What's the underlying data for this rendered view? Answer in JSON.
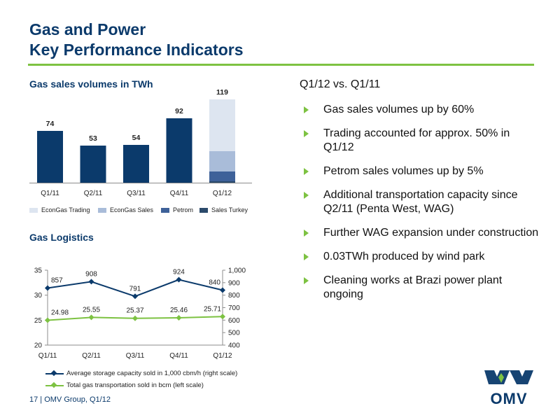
{
  "page": {
    "title_line1": "Gas and Power",
    "title_line2": "Key Performance Indicators",
    "footer": "17 | OMV Group, Q1/12"
  },
  "brand": {
    "logo_text": "OMV",
    "primary": "#0b3a6b",
    "accent": "#7dc242"
  },
  "summary": {
    "heading": "Q1/12 vs. Q1/11",
    "bullets": [
      "Gas sales volumes up by 60%",
      "Trading accounted for approx. 50% in Q1/12",
      "Petrom sales volumes up by 5%",
      "Additional transportation capacity since Q2/11 (Penta West, WAG)",
      "Further WAG expansion under construction",
      "0.03TWh produced by wind park",
      "Cleaning works at Brazi power plant ongoing"
    ]
  },
  "chart_data": [
    {
      "type": "bar",
      "title": "Gas sales volumes in TWh",
      "categories": [
        "Q1/11",
        "Q2/11",
        "Q3/11",
        "Q4/11",
        "Q1/12"
      ],
      "totals": [
        74,
        53,
        54,
        92,
        119
      ],
      "single_color": "#0b3a6b",
      "stacked_breakdown": {
        "category": "Q1/12",
        "segments": [
          {
            "name": "Sales Turkey",
            "value": 2,
            "color": "#2b4a6b"
          },
          {
            "name": "Petrom",
            "value": 14,
            "color": "#3e6199"
          },
          {
            "name": "EconGas Sales",
            "value": 29,
            "color": "#a9bcd9"
          },
          {
            "name": "EconGas Trading",
            "value": 74,
            "color": "#dde5f0"
          }
        ]
      },
      "legend": [
        {
          "name": "EconGas Trading",
          "color": "#dde5f0"
        },
        {
          "name": "EconGas Sales",
          "color": "#a9bcd9"
        },
        {
          "name": "Petrom",
          "color": "#3e6199"
        },
        {
          "name": "Sales Turkey",
          "color": "#2b4a6b"
        }
      ],
      "ylim": [
        0,
        125
      ]
    },
    {
      "type": "line",
      "title": "Gas Logistics",
      "categories": [
        "Q1/11",
        "Q2/11",
        "Q3/11",
        "Q4/11",
        "Q1/12"
      ],
      "left_axis": {
        "ticks": [
          "20",
          "25",
          "30",
          "35"
        ],
        "ylim": [
          20,
          35
        ]
      },
      "right_axis": {
        "ticks": [
          "400",
          "500",
          "600",
          "700",
          "800",
          "900",
          "1,000"
        ],
        "ylim": [
          400,
          1000
        ]
      },
      "series": [
        {
          "name": "Average storage capacity sold in 1,000 cbm/h (right scale)",
          "axis": "right",
          "values": [
            857,
            908,
            791,
            924,
            840
          ],
          "labels": [
            "857",
            "908",
            "791",
            "924",
            "840"
          ],
          "color": "#0b3a6b"
        },
        {
          "name": "Total gas transportation sold in bcm (left scale)",
          "axis": "left",
          "values": [
            24.98,
            25.55,
            25.37,
            25.46,
            25.71
          ],
          "labels": [
            "24.98",
            "25.55",
            "25.37",
            "25.46",
            "25.71"
          ],
          "color": "#7dc242"
        }
      ]
    }
  ]
}
